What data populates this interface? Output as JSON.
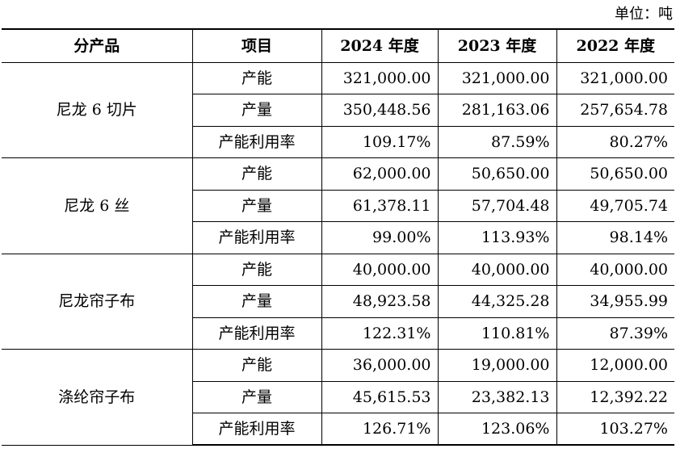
{
  "unit_label": "单位：吨",
  "headers": {
    "product": "分产品",
    "item": "项目",
    "y2024": "2024 年度",
    "y2023": "2023 年度",
    "y2022": "2022 年度"
  },
  "groups": [
    {
      "product": "尼龙 6 切片",
      "rows": [
        {
          "item": "产能",
          "y2024": "321,000.00",
          "y2023": "321,000.00",
          "y2022": "321,000.00"
        },
        {
          "item": "产量",
          "y2024": "350,448.56",
          "y2023": "281,163.06",
          "y2022": "257,654.78"
        },
        {
          "item": "产能利用率",
          "y2024": "109.17%",
          "y2023": "87.59%",
          "y2022": "80.27%"
        }
      ]
    },
    {
      "product": "尼龙 6 丝",
      "rows": [
        {
          "item": "产能",
          "y2024": "62,000.00",
          "y2023": "50,650.00",
          "y2022": "50,650.00"
        },
        {
          "item": "产量",
          "y2024": "61,378.11",
          "y2023": "57,704.48",
          "y2022": "49,705.74"
        },
        {
          "item": "产能利用率",
          "y2024": "99.00%",
          "y2023": "113.93%",
          "y2022": "98.14%"
        }
      ]
    },
    {
      "product": "尼龙帘子布",
      "rows": [
        {
          "item": "产能",
          "y2024": "40,000.00",
          "y2023": "40,000.00",
          "y2022": "40,000.00"
        },
        {
          "item": "产量",
          "y2024": "48,923.58",
          "y2023": "44,325.28",
          "y2022": "34,955.99"
        },
        {
          "item": "产能利用率",
          "y2024": "122.31%",
          "y2023": "110.81%",
          "y2022": "87.39%"
        }
      ]
    },
    {
      "product": "涤纶帘子布",
      "rows": [
        {
          "item": "产能",
          "y2024": "36,000.00",
          "y2023": "19,000.00",
          "y2022": "12,000.00"
        },
        {
          "item": "产量",
          "y2024": "45,615.53",
          "y2023": "23,382.13",
          "y2022": "12,392.22"
        },
        {
          "item": "产能利用率",
          "y2024": "126.71%",
          "y2023": "123.06%",
          "y2022": "103.27%"
        }
      ]
    }
  ]
}
